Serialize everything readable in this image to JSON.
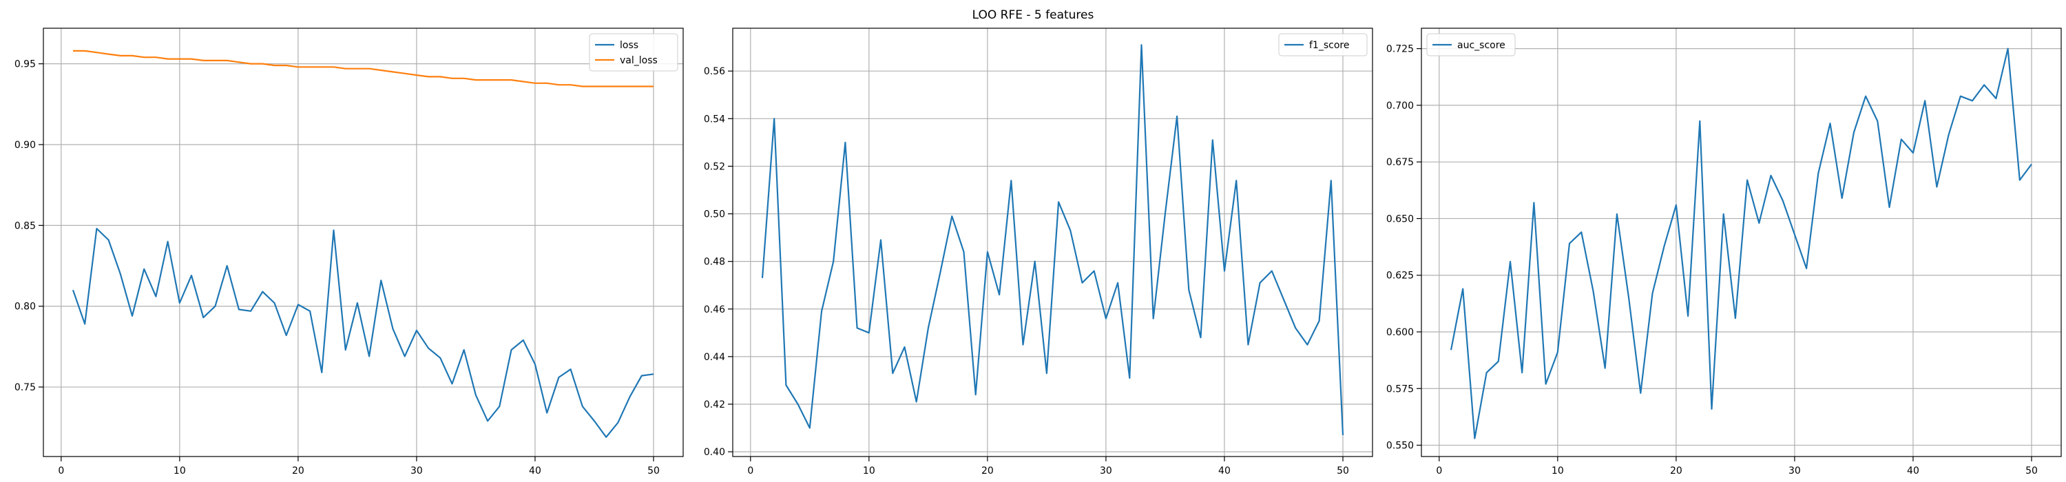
{
  "figure": {
    "suptitle": "LOO RFE - 5 features"
  },
  "chart_data": [
    {
      "type": "line",
      "title": "",
      "xlabel": "",
      "ylabel": "",
      "xlim": [
        -1.5,
        52.5
      ],
      "ylim": [
        0.707,
        0.972
      ],
      "xticks": [
        0,
        10,
        20,
        30,
        40,
        50
      ],
      "yticks": [
        0.75,
        0.8,
        0.85,
        0.9,
        0.95
      ],
      "ytick_labels": [
        "0.75",
        "0.80",
        "0.85",
        "0.90",
        "0.95"
      ],
      "grid": true,
      "legend_position": "top-right",
      "series": [
        {
          "name": "loss",
          "color": "#1f77b4",
          "x": [
            1,
            2,
            3,
            4,
            5,
            6,
            7,
            8,
            9,
            10,
            11,
            12,
            13,
            14,
            15,
            16,
            17,
            18,
            19,
            20,
            21,
            22,
            23,
            24,
            25,
            26,
            27,
            28,
            29,
            30,
            31,
            32,
            33,
            34,
            35,
            36,
            37,
            38,
            39,
            40,
            41,
            42,
            43,
            44,
            45,
            46,
            47,
            48,
            49,
            50
          ],
          "values": [
            0.81,
            0.789,
            0.848,
            0.841,
            0.82,
            0.794,
            0.823,
            0.806,
            0.84,
            0.802,
            0.819,
            0.793,
            0.8,
            0.825,
            0.798,
            0.797,
            0.809,
            0.802,
            0.782,
            0.801,
            0.797,
            0.759,
            0.847,
            0.773,
            0.802,
            0.769,
            0.816,
            0.786,
            0.769,
            0.785,
            0.774,
            0.768,
            0.752,
            0.773,
            0.745,
            0.729,
            0.738,
            0.773,
            0.779,
            0.764,
            0.734,
            0.756,
            0.761,
            0.738,
            0.729,
            0.719,
            0.728,
            0.744,
            0.757,
            0.758
          ]
        },
        {
          "name": "val_loss",
          "color": "#ff7f0e",
          "x": [
            1,
            2,
            3,
            4,
            5,
            6,
            7,
            8,
            9,
            10,
            11,
            12,
            13,
            14,
            15,
            16,
            17,
            18,
            19,
            20,
            21,
            22,
            23,
            24,
            25,
            26,
            27,
            28,
            29,
            30,
            31,
            32,
            33,
            34,
            35,
            36,
            37,
            38,
            39,
            40,
            41,
            42,
            43,
            44,
            45,
            46,
            47,
            48,
            49,
            50
          ],
          "values": [
            0.958,
            0.958,
            0.957,
            0.956,
            0.955,
            0.955,
            0.954,
            0.954,
            0.953,
            0.953,
            0.953,
            0.952,
            0.952,
            0.952,
            0.951,
            0.95,
            0.95,
            0.949,
            0.949,
            0.948,
            0.948,
            0.948,
            0.948,
            0.947,
            0.947,
            0.947,
            0.946,
            0.945,
            0.944,
            0.943,
            0.942,
            0.942,
            0.941,
            0.941,
            0.94,
            0.94,
            0.94,
            0.94,
            0.939,
            0.938,
            0.938,
            0.937,
            0.937,
            0.936,
            0.936,
            0.936,
            0.936,
            0.936,
            0.936,
            0.936
          ]
        }
      ]
    },
    {
      "type": "line",
      "title": "",
      "xlabel": "",
      "ylabel": "",
      "xlim": [
        -1.5,
        52.5
      ],
      "ylim": [
        0.398,
        0.578
      ],
      "xticks": [
        0,
        10,
        20,
        30,
        40,
        50
      ],
      "yticks": [
        0.4,
        0.42,
        0.44,
        0.46,
        0.48,
        0.5,
        0.52,
        0.54,
        0.56
      ],
      "ytick_labels": [
        "0.40",
        "0.42",
        "0.44",
        "0.46",
        "0.48",
        "0.50",
        "0.52",
        "0.54",
        "0.56"
      ],
      "grid": true,
      "legend_position": "top-right",
      "series": [
        {
          "name": "f1_score",
          "color": "#1f77b4",
          "x": [
            1,
            2,
            3,
            4,
            5,
            6,
            7,
            8,
            9,
            10,
            11,
            12,
            13,
            14,
            15,
            16,
            17,
            18,
            19,
            20,
            21,
            22,
            23,
            24,
            25,
            26,
            27,
            28,
            29,
            30,
            31,
            32,
            33,
            34,
            35,
            36,
            37,
            38,
            39,
            40,
            41,
            42,
            43,
            44,
            45,
            46,
            47,
            48,
            49,
            50
          ],
          "values": [
            0.473,
            0.54,
            0.428,
            0.42,
            0.41,
            0.459,
            0.48,
            0.53,
            0.452,
            0.45,
            0.489,
            0.433,
            0.444,
            0.421,
            0.452,
            0.475,
            0.499,
            0.484,
            0.424,
            0.484,
            0.466,
            0.514,
            0.445,
            0.48,
            0.433,
            0.505,
            0.493,
            0.471,
            0.476,
            0.456,
            0.471,
            0.431,
            0.571,
            0.456,
            0.5,
            0.541,
            0.468,
            0.448,
            0.531,
            0.476,
            0.514,
            0.445,
            0.471,
            0.476,
            0.464,
            0.452,
            0.445,
            0.455,
            0.514,
            0.407
          ]
        }
      ]
    },
    {
      "type": "line",
      "title": "",
      "xlabel": "",
      "ylabel": "",
      "xlim": [
        -1.5,
        52.5
      ],
      "ylim": [
        0.545,
        0.734
      ],
      "xticks": [
        0,
        10,
        20,
        30,
        40,
        50
      ],
      "yticks": [
        0.55,
        0.575,
        0.6,
        0.625,
        0.65,
        0.675,
        0.7,
        0.725
      ],
      "ytick_labels": [
        "0.550",
        "0.575",
        "0.600",
        "0.625",
        "0.650",
        "0.675",
        "0.700",
        "0.725"
      ],
      "grid": true,
      "legend_position": "top-left",
      "series": [
        {
          "name": "auc_score",
          "color": "#1f77b4",
          "x": [
            1,
            2,
            3,
            4,
            5,
            6,
            7,
            8,
            9,
            10,
            11,
            12,
            13,
            14,
            15,
            16,
            17,
            18,
            19,
            20,
            21,
            22,
            23,
            24,
            25,
            26,
            27,
            28,
            29,
            30,
            31,
            32,
            33,
            34,
            35,
            36,
            37,
            38,
            39,
            40,
            41,
            42,
            43,
            44,
            45,
            46,
            47,
            48,
            49,
            50
          ],
          "values": [
            0.592,
            0.619,
            0.553,
            0.582,
            0.587,
            0.631,
            0.582,
            0.657,
            0.577,
            0.591,
            0.639,
            0.644,
            0.618,
            0.584,
            0.652,
            0.615,
            0.573,
            0.617,
            0.638,
            0.656,
            0.607,
            0.693,
            0.566,
            0.652,
            0.606,
            0.667,
            0.648,
            0.669,
            0.658,
            0.643,
            0.628,
            0.67,
            0.692,
            0.659,
            0.688,
            0.704,
            0.693,
            0.655,
            0.685,
            0.679,
            0.702,
            0.664,
            0.687,
            0.704,
            0.702,
            0.709,
            0.703,
            0.725,
            0.667,
            0.674
          ]
        }
      ]
    }
  ]
}
